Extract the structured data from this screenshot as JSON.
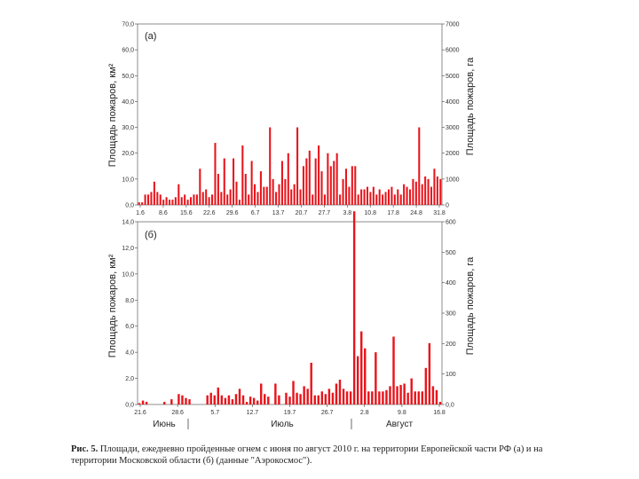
{
  "chart_data": [
    {
      "type": "bar",
      "panel_label": "(a)",
      "ylabel_left": "Площадь пожаров, км²",
      "ylabel_right": "Площадь пожаров, га",
      "yticks_left": [
        "0,0",
        "10,0",
        "20,0",
        "30,0",
        "40,0",
        "50,0",
        "60,0",
        "70,0"
      ],
      "yticks_right": [
        "0",
        "1000",
        "2000",
        "3000",
        "4000",
        "5000",
        "6000",
        "7000"
      ],
      "ylim": [
        0,
        70
      ],
      "xticks": [
        "1.6",
        "8.6",
        "15.6",
        "22.6",
        "29.6",
        "6.7",
        "13.7",
        "20.7",
        "27.7",
        "3.8",
        "10.8",
        "17.8",
        "24.8",
        "31.8"
      ],
      "color": "#e8141b",
      "values": [
        1,
        1,
        4,
        4,
        5,
        9,
        5,
        4,
        2,
        3,
        2,
        2,
        3,
        8,
        3,
        4,
        2,
        3,
        4,
        4,
        14,
        5,
        6,
        3,
        4,
        24,
        12,
        5,
        18,
        4,
        6,
        18,
        9,
        2,
        23,
        12,
        4,
        17,
        8,
        5,
        13,
        7,
        7,
        30,
        10,
        5,
        8,
        17,
        10,
        20,
        6,
        8,
        30,
        6,
        15,
        18,
        21,
        4,
        18,
        23,
        13,
        4,
        20,
        15,
        17,
        20,
        4,
        10,
        14,
        7,
        15,
        15,
        4,
        6,
        6,
        7,
        5,
        7,
        4,
        6,
        4,
        5,
        6,
        7,
        4,
        6,
        4,
        8,
        7,
        6,
        10,
        9,
        30,
        8,
        11,
        10,
        7,
        14,
        11,
        10
      ]
    },
    {
      "type": "bar",
      "panel_label": "(б)",
      "ylabel_left": "Площадь пожаров, км²",
      "ylabel_right": "Площадь пожаров, га",
      "yticks_left": [
        "0,0",
        "2,0",
        "4,0",
        "6,0",
        "8,0",
        "10,0",
        "12,0",
        "14,0"
      ],
      "yticks_right": [
        "0,0",
        "100",
        "200",
        "300",
        "400",
        "500",
        "600"
      ],
      "ylim": [
        0,
        14
      ],
      "xticks": [
        "21.6",
        "28.6",
        "5.7",
        "12.7",
        "19.7",
        "26.7",
        "2.8",
        "9.8",
        "16.8"
      ],
      "month_labels": [
        "Июнь",
        "Июль",
        "Август"
      ],
      "color": "#e8141b",
      "values": [
        0.1,
        0.3,
        0.2,
        0,
        0,
        0,
        0,
        0.2,
        0,
        0.4,
        0,
        0.8,
        0.7,
        0.5,
        0.4,
        0,
        0,
        0,
        0,
        0.7,
        0.9,
        0.7,
        1.3,
        0.7,
        0.5,
        0.7,
        0.4,
        0.8,
        1.2,
        0.7,
        0.2,
        0.6,
        0.5,
        0.3,
        1.6,
        0.8,
        0.6,
        0,
        1.6,
        0.7,
        0,
        0.9,
        0.6,
        1.8,
        0.9,
        0.8,
        1.4,
        1.2,
        3.2,
        0.7,
        0.7,
        1.0,
        0.8,
        1.2,
        0.9,
        1.6,
        1.9,
        1.2,
        1.0,
        1.0,
        14.8,
        3.7,
        5.6,
        4.3,
        1.0,
        1.0,
        4.0,
        1.0,
        1.0,
        1.1,
        1.4,
        5.2,
        1.4,
        1.5,
        1.6,
        0.9,
        2.0,
        1.0,
        1.0,
        1.0,
        2.8,
        4.7,
        1.4,
        1.1,
        0.2
      ]
    }
  ],
  "caption": {
    "label": "Рис. 5.",
    "text": " Площади, ежедневно пройденные огнем с июня по август 2010 г. на территории Европейской части РФ (а) и на территории Московской области (б) (данные \"Аэрокосмос\")."
  }
}
